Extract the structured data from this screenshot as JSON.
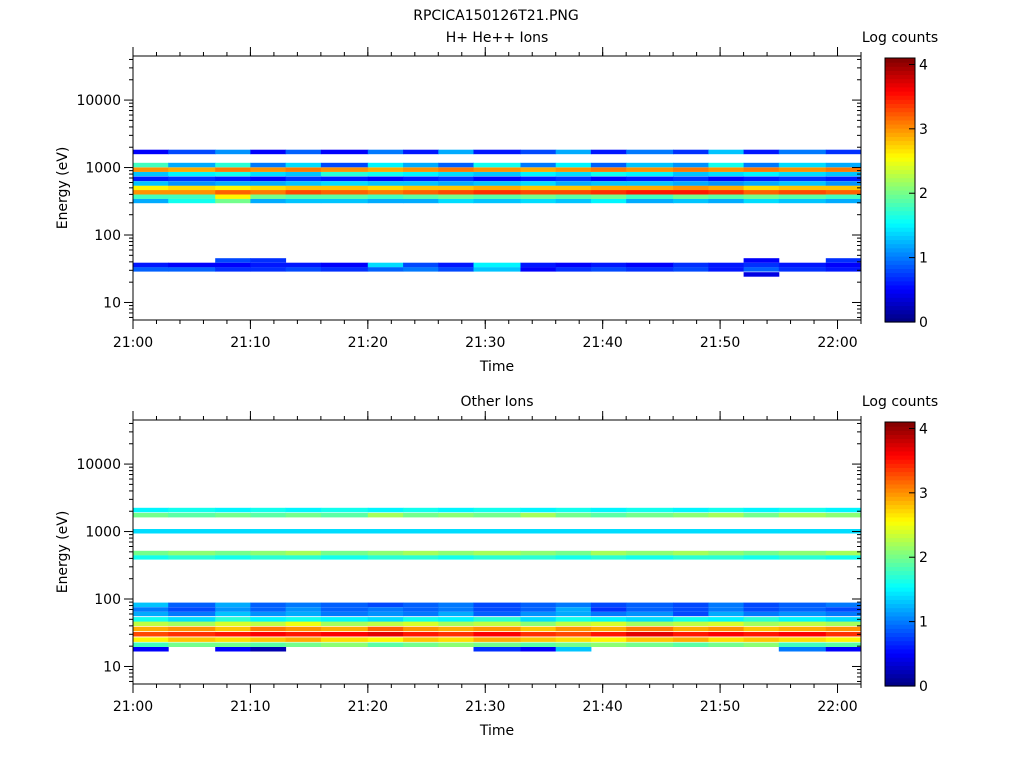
{
  "figure_title": "RPCICA150126T21.PNG",
  "chart_data": [
    {
      "type": "heatmap",
      "title": "H+ He++ Ions",
      "xlabel": "Time",
      "ylabel": "Energy (eV)",
      "x_tick_labels": [
        "21:00",
        "21:10",
        "21:20",
        "21:30",
        "21:40",
        "21:50",
        "22:00"
      ],
      "x_range": [
        "21:00",
        "22:02"
      ],
      "y_scale": "log",
      "y_tick_labels": [
        "10",
        "100",
        "1000",
        "10000"
      ],
      "y_range": [
        5.5,
        45000
      ],
      "colorbar": {
        "label": "Log counts",
        "ticks": [
          "0",
          "1",
          "2",
          "3",
          "4"
        ],
        "range": [
          0,
          4.1
        ],
        "colormap": "jet"
      },
      "time_columns": [
        "21:00",
        "21:03",
        "21:07",
        "21:10",
        "21:13",
        "21:16",
        "21:20",
        "21:23",
        "21:26",
        "21:29",
        "21:33",
        "21:36",
        "21:39",
        "21:42",
        "21:46",
        "21:49",
        "21:52",
        "21:55",
        "21:59"
      ],
      "band_rows": [
        {
          "energy_eV": 26,
          "values": [
            0,
            0,
            0,
            0,
            0,
            0,
            0,
            0,
            0,
            0,
            0,
            0,
            0,
            0,
            0,
            0,
            0.4,
            0,
            0
          ]
        },
        {
          "energy_eV": 31,
          "values": [
            0.9,
            0.9,
            0.7,
            0.7,
            0.8,
            0.7,
            0.9,
            1.0,
            0.8,
            1.3,
            0.5,
            0.7,
            0.8,
            0.7,
            0.8,
            0.6,
            0.9,
            0.7,
            0.6
          ]
        },
        {
          "energy_eV": 36,
          "values": [
            0.6,
            0.5,
            0.5,
            0.6,
            0.6,
            0.5,
            1.4,
            0.8,
            0.6,
            1.5,
            0.6,
            0.5,
            0.6,
            0.5,
            0.7,
            0.6,
            0.7,
            0.6,
            0.5
          ]
        },
        {
          "energy_eV": 42,
          "values": [
            0,
            0,
            0.8,
            0.7,
            0,
            0,
            0,
            0,
            0,
            0,
            0,
            0,
            0,
            0,
            0,
            0,
            0.5,
            0,
            0.7
          ]
        },
        {
          "energy_eV": 320,
          "values": [
            1.2,
            1.6,
            2.0,
            1.2,
            1.3,
            1.3,
            1.2,
            1.2,
            1.4,
            1.3,
            1.4,
            1.3,
            1.5,
            1.2,
            1.3,
            1.2,
            1.4,
            1.3,
            1.2
          ]
        },
        {
          "energy_eV": 370,
          "values": [
            1.8,
            1.8,
            2.6,
            2.0,
            1.9,
            1.9,
            1.8,
            1.9,
            2.0,
            1.9,
            2.0,
            1.9,
            2.0,
            1.8,
            2.0,
            1.9,
            2.0,
            1.9,
            1.8
          ]
        },
        {
          "energy_eV": 430,
          "values": [
            3.0,
            3.0,
            3.2,
            3.1,
            3.3,
            3.2,
            3.1,
            3.2,
            3.3,
            3.4,
            3.3,
            3.3,
            3.4,
            3.5,
            3.5,
            3.4,
            3.2,
            3.3,
            3.2
          ]
        },
        {
          "energy_eV": 500,
          "values": [
            2.6,
            2.7,
            2.6,
            2.7,
            2.8,
            2.8,
            2.7,
            2.8,
            2.8,
            2.9,
            2.8,
            2.8,
            2.9,
            2.9,
            3.0,
            2.9,
            2.7,
            2.8,
            2.8
          ]
        },
        {
          "energy_eV": 580,
          "values": [
            1.3,
            1.1,
            1.2,
            1.2,
            1.3,
            1.4,
            1.3,
            1.3,
            1.2,
            1.3,
            1.4,
            1.2,
            1.3,
            1.3,
            1.2,
            1.1,
            1.2,
            1.3,
            1.1
          ]
        },
        {
          "energy_eV": 680,
          "values": [
            0.6,
            0.7,
            0.6,
            0.5,
            0.7,
            0.6,
            0.5,
            0.6,
            0.7,
            0.5,
            0.6,
            0.7,
            0.5,
            0.6,
            0.7,
            0.5,
            0.6,
            0.7,
            0.6
          ]
        },
        {
          "energy_eV": 800,
          "values": [
            1.3,
            1.5,
            1.6,
            1.4,
            1.3,
            1.7,
            1.6,
            1.5,
            1.4,
            1.3,
            1.5,
            1.4,
            1.6,
            1.5,
            1.3,
            1.4,
            1.5,
            1.4,
            1.3
          ]
        },
        {
          "energy_eV": 930,
          "values": [
            3.0,
            2.9,
            3.1,
            3.0,
            3.1,
            3.0,
            2.9,
            3.0,
            3.1,
            3.0,
            2.9,
            3.0,
            3.1,
            3.0,
            3.1,
            3.0,
            3.1,
            3.0,
            3.1
          ]
        },
        {
          "energy_eV": 1090,
          "values": [
            1.8,
            1.2,
            1.7,
            1.0,
            1.4,
            0.8,
            1.5,
            1.2,
            0.9,
            1.6,
            1.0,
            1.5,
            0.9,
            1.3,
            1.1,
            1.6,
            1.0,
            1.4,
            1.2
          ]
        },
        {
          "energy_eV": 1700,
          "values": [
            0.5,
            0.8,
            1.1,
            0.5,
            0.9,
            0.5,
            1.0,
            0.6,
            1.2,
            0.6,
            0.8,
            1.2,
            0.6,
            1.0,
            0.7,
            1.3,
            0.6,
            1.0,
            0.7
          ]
        }
      ]
    },
    {
      "type": "heatmap",
      "title": "Other Ions",
      "xlabel": "Time",
      "ylabel": "Energy (eV)",
      "x_tick_labels": [
        "21:00",
        "21:10",
        "21:20",
        "21:30",
        "21:40",
        "21:50",
        "22:00"
      ],
      "x_range": [
        "21:00",
        "22:02"
      ],
      "y_scale": "log",
      "y_tick_labels": [
        "10",
        "100",
        "1000",
        "10000"
      ],
      "y_range": [
        5.5,
        45000
      ],
      "colorbar": {
        "label": "Log counts",
        "ticks": [
          "0",
          "1",
          "2",
          "3",
          "4"
        ],
        "range": [
          0,
          4.1
        ],
        "colormap": "jet"
      },
      "time_columns": [
        "21:00",
        "21:03",
        "21:07",
        "21:10",
        "21:13",
        "21:16",
        "21:20",
        "21:23",
        "21:26",
        "21:29",
        "21:33",
        "21:36",
        "21:39",
        "21:42",
        "21:46",
        "21:49",
        "21:52",
        "21:55",
        "21:59"
      ],
      "band_rows": [
        {
          "energy_eV": 18,
          "values": [
            0.5,
            0,
            0.5,
            0.2,
            0,
            0,
            0,
            0,
            0,
            0.7,
            0.5,
            1.3,
            0,
            0,
            0,
            0,
            0,
            1.0,
            0.5
          ]
        },
        {
          "energy_eV": 21,
          "values": [
            1.8,
            2.0,
            2.0,
            1.9,
            2.0,
            2.1,
            1.9,
            2.0,
            2.1,
            2.0,
            1.9,
            2.0,
            2.1,
            2.0,
            1.9,
            2.0,
            2.1,
            1.8,
            1.9
          ]
        },
        {
          "energy_eV": 25,
          "values": [
            2.6,
            2.8,
            2.7,
            2.8,
            2.9,
            2.7,
            2.6,
            2.8,
            2.7,
            2.9,
            2.8,
            2.7,
            2.6,
            2.8,
            2.9,
            2.7,
            2.8,
            2.7,
            2.6
          ]
        },
        {
          "energy_eV": 30,
          "values": [
            3.3,
            3.4,
            3.5,
            3.6,
            3.5,
            3.6,
            3.7,
            3.5,
            3.4,
            3.6,
            3.4,
            3.3,
            3.5,
            3.7,
            3.5,
            3.6,
            3.5,
            3.6,
            3.4
          ]
        },
        {
          "energy_eV": 36,
          "values": [
            2.9,
            3.0,
            2.8,
            3.1,
            3.0,
            2.9,
            3.2,
            3.0,
            2.9,
            3.0,
            2.8,
            3.0,
            2.9,
            3.1,
            2.9,
            3.0,
            2.8,
            2.9,
            3.0
          ]
        },
        {
          "energy_eV": 43,
          "values": [
            2.3,
            2.2,
            2.4,
            2.3,
            2.5,
            2.2,
            2.3,
            2.4,
            2.2,
            2.3,
            2.1,
            2.3,
            2.4,
            2.2,
            2.3,
            2.4,
            2.2,
            2.3,
            2.2
          ]
        },
        {
          "energy_eV": 50,
          "values": [
            1.6,
            1.4,
            1.7,
            1.5,
            1.6,
            1.5,
            1.4,
            1.6,
            1.5,
            1.7,
            1.4,
            1.6,
            1.5,
            1.4,
            1.6,
            1.5,
            1.7,
            1.5,
            1.4
          ]
        },
        {
          "energy_eV": 60,
          "values": [
            1.2,
            1.0,
            1.3,
            1.1,
            1.2,
            1.0,
            1.1,
            1.0,
            1.2,
            0.9,
            1.1,
            1.2,
            1.0,
            1.1,
            0.8,
            1.2,
            1.0,
            1.1,
            1.0
          ]
        },
        {
          "energy_eV": 70,
          "values": [
            1.0,
            0.8,
            1.1,
            0.9,
            1.1,
            0.9,
            1.0,
            0.9,
            1.0,
            0.8,
            0.9,
            1.2,
            0.7,
            0.9,
            0.8,
            1.0,
            0.8,
            0.9,
            0.8
          ]
        },
        {
          "energy_eV": 82,
          "values": [
            1.3,
            0.9,
            1.2,
            0.9,
            1.0,
            0.9,
            0.8,
            0.9,
            1.0,
            0.8,
            0.9,
            1.0,
            0.8,
            0.9,
            0.8,
            1.0,
            0.8,
            0.9,
            1.0
          ]
        },
        {
          "energy_eV": 415,
          "values": [
            1.6,
            1.7,
            1.6,
            1.7,
            1.7,
            1.6,
            1.7,
            1.7,
            1.6,
            1.7,
            1.7,
            1.6,
            1.7,
            1.6,
            1.7,
            1.7,
            1.6,
            1.7,
            1.6
          ]
        },
        {
          "energy_eV": 480,
          "values": [
            2.0,
            2.1,
            2.0,
            2.1,
            2.2,
            2.0,
            2.1,
            2.2,
            2.1,
            2.2,
            2.1,
            2.0,
            2.2,
            2.1,
            2.2,
            2.1,
            2.0,
            2.1,
            2.2
          ]
        },
        {
          "energy_eV": 1010,
          "values": [
            1.4,
            1.4,
            1.4,
            1.4,
            1.4,
            1.4,
            1.4,
            1.4,
            1.4,
            1.4,
            1.4,
            1.4,
            1.4,
            1.4,
            1.4,
            1.4,
            1.4,
            1.4,
            1.4
          ]
        },
        {
          "energy_eV": 1750,
          "values": [
            2.0,
            1.9,
            2.0,
            1.9,
            2.0,
            1.9,
            2.2,
            2.0,
            2.1,
            2.0,
            2.2,
            2.0,
            1.9,
            2.0,
            2.1,
            2.2,
            2.0,
            2.2,
            2.1
          ]
        },
        {
          "energy_eV": 2080,
          "values": [
            1.5,
            1.6,
            1.5,
            1.6,
            1.5,
            1.6,
            1.5,
            1.6,
            1.5,
            1.6,
            1.5,
            1.6,
            1.5,
            1.6,
            1.5,
            1.6,
            1.5,
            1.6,
            1.5
          ]
        }
      ]
    }
  ]
}
